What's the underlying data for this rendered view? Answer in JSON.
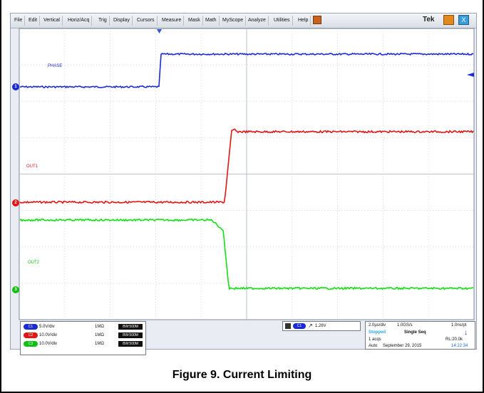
{
  "menu": [
    "File",
    "Edit",
    "Vertical",
    "Horiz/Acq",
    "Trig",
    "Display",
    "Cursors",
    "Measure",
    "Mask",
    "Math",
    "MyScope",
    "Analyze",
    "Utilities",
    "Help"
  ],
  "brand": "Tek",
  "close_glyph": "X",
  "traces": {
    "phase_label": "PHASE",
    "out1_label": "OUT1",
    "out2_label": "OUT2",
    "marker_1": "1",
    "marker_2": "2",
    "marker_3": "3"
  },
  "colors": {
    "ch1": "#1a2bd6",
    "ch2": "#e01515",
    "ch3": "#12e012"
  },
  "channels": [
    {
      "pill": "C1",
      "scale": "5.0V/div",
      "impedance": "1MΩ",
      "bw": "BW:500M"
    },
    {
      "pill": "C2",
      "scale": "10.0V/div",
      "impedance": "1MΩ",
      "bw": "BW:500M"
    },
    {
      "pill": "C3",
      "scale": "10.0V/div",
      "impedance": "1MΩ",
      "bw": "BW:500M"
    }
  ],
  "trigger": {
    "source": "C1",
    "level": "1.26V"
  },
  "acquisition": {
    "timebase": "2.0µs/div",
    "sample_rate": "1.0GS/s",
    "resolution": "1.0ns/pt",
    "state": "Stopped",
    "mode": "Single Seq",
    "acqs": "1 acqs",
    "record_length": "RL:20.0k",
    "auto": "Auto",
    "date": "September 29, 2015",
    "time": "14:22:34"
  },
  "caption": "Figure 9. Current Limiting"
}
